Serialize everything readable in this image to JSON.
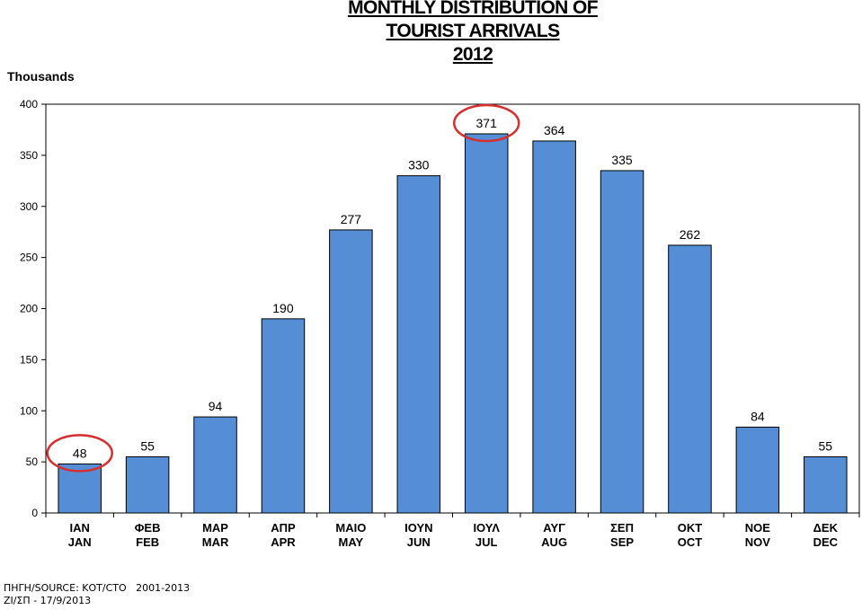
{
  "title": {
    "line1": "MONTHLY DISTRIBUTION OF",
    "line2": "TOURIST ARRIVALS",
    "line3": "2012"
  },
  "footer": {
    "source": "ΠΗΓΗ/SOURCE: ΚΟΤ/CTO   2001-2013",
    "date": "ΖΙ/ΣΠ - 17/9/2013"
  },
  "colors": {
    "bar": "#558ed5",
    "bar_edge": "#000000",
    "highlight_ring": "#d62f2f"
  },
  "chart_data": {
    "type": "bar",
    "ylabel": "Thousands",
    "ylim": [
      0,
      400
    ],
    "yticks": [
      0,
      50,
      100,
      150,
      200,
      250,
      300,
      350,
      400
    ],
    "grid": false,
    "categories_el": [
      "ΙΑΝ",
      "ΦΕΒ",
      "ΜΑΡ",
      "ΑΠΡ",
      "ΜΑΙΟ",
      "ΙΟΥΝ",
      "ΙΟΥΛ",
      "ΑΥΓ",
      "ΣΕΠ",
      "ΟΚΤ",
      "ΝΟΕ",
      "ΔΕΚ"
    ],
    "categories": [
      "JAN",
      "FEB",
      "MAR",
      "APR",
      "MAY",
      "JUN",
      "JUL",
      "AUG",
      "SEP",
      "OCT",
      "NOV",
      "DEC"
    ],
    "values": [
      48,
      55,
      94,
      190,
      277,
      330,
      371,
      364,
      335,
      262,
      84,
      55
    ],
    "highlighted": [
      "JAN",
      "JUL"
    ]
  }
}
